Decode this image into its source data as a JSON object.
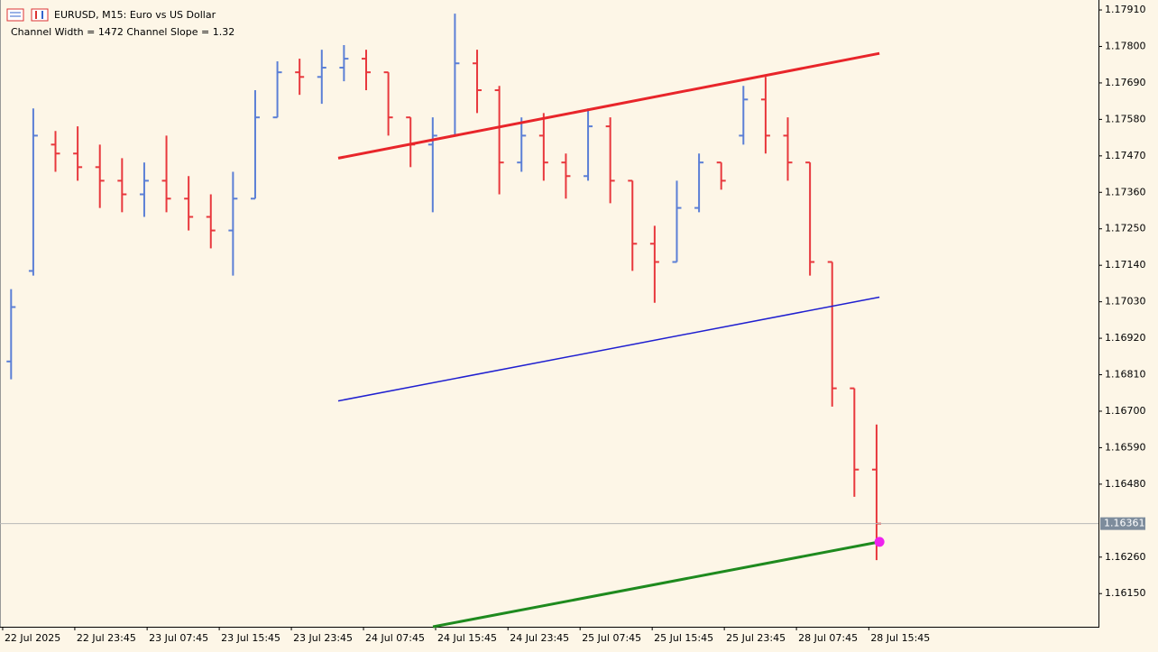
{
  "chart_data": {
    "type": "ohlc",
    "title": "EURUSD, M15:  Euro vs US Dollar",
    "subtitle": "Channel Width = 1472 Channel Slope = 1.32",
    "up_color": "#5b7fd6",
    "down_color": "#e8383d",
    "open": [
      1.1685,
      1.17123,
      1.17504,
      1.17477,
      1.17436,
      1.17395,
      1.17354,
      1.17395,
      1.17341,
      1.17286,
      1.17245,
      1.17341,
      1.17586,
      1.17722,
      1.17708,
      1.17736,
      1.17763,
      1.17722,
      1.17586,
      1.17504,
      1.17531,
      1.17749,
      1.17668,
      1.1745,
      1.17531,
      1.1745,
      1.17409,
      1.17559,
      1.17395,
      1.17205,
      1.1715,
      1.17313,
      1.1745,
      1.17531,
      1.1764,
      1.17531,
      1.1745,
      1.1715,
      1.16769,
      1.16524
    ],
    "high": [
      1.17068,
      1.17613,
      1.17545,
      1.17559,
      1.17504,
      1.17463,
      1.1745,
      1.17531,
      1.17409,
      1.17354,
      1.17422,
      1.17668,
      1.17755,
      1.17763,
      1.1779,
      1.17804,
      1.1779,
      1.17722,
      1.17586,
      1.17586,
      1.17899,
      1.1779,
      1.17681,
      1.17586,
      1.17599,
      1.17477,
      1.17613,
      1.17586,
      1.17395,
      1.17259,
      1.17395,
      1.17477,
      1.1745,
      1.17681,
      1.17708,
      1.17586,
      1.1745,
      1.1715,
      1.16769,
      1.1666
    ],
    "low": [
      1.16796,
      1.17109,
      1.17422,
      1.17395,
      1.17313,
      1.173,
      1.17286,
      1.173,
      1.17245,
      1.17191,
      1.17109,
      1.17341,
      1.17586,
      1.17654,
      1.17627,
      1.17695,
      1.17668,
      1.17531,
      1.17436,
      1.173,
      1.17531,
      1.17599,
      1.17354,
      1.17422,
      1.17395,
      1.17341,
      1.17395,
      1.17327,
      1.17123,
      1.17027,
      1.1715,
      1.173,
      1.17368,
      1.17504,
      1.17477,
      1.17395,
      1.17109,
      1.16714,
      1.16442,
      1.16251
    ],
    "close": [
      1.17014,
      1.17531,
      1.17477,
      1.17436,
      1.17395,
      1.17354,
      1.17395,
      1.17341,
      1.17286,
      1.17245,
      1.17341,
      1.17586,
      1.17722,
      1.17708,
      1.17736,
      1.17763,
      1.17722,
      1.17586,
      1.17504,
      1.17531,
      1.17749,
      1.17668,
      1.1745,
      1.17531,
      1.1745,
      1.17409,
      1.17559,
      1.17395,
      1.17205,
      1.1715,
      1.17313,
      1.1745,
      1.17395,
      1.1764,
      1.17531,
      1.1745,
      1.1715,
      1.16769,
      1.16524,
      1.16361
    ],
    "current_price": 1.16361,
    "lines": [
      {
        "color": "#e8252a",
        "width": 3,
        "x": [
          14.74,
          39.13
        ],
        "y": [
          1.17463,
          1.17779
        ]
      },
      {
        "color": "#1f1fd0",
        "width": 1.5,
        "x": [
          14.74,
          39.13
        ],
        "y": [
          1.16731,
          1.17044
        ]
      },
      {
        "color": "#1e8a1e",
        "width": 3,
        "x": [
          19.01,
          39.13
        ],
        "y": [
          1.1605,
          1.16306
        ]
      }
    ],
    "marker": {
      "color": "#ee22ee",
      "x": 39.13,
      "y": 1.16306
    },
    "xlim": [
      -0.5,
      49
    ],
    "ylim": [
      1.1605,
      1.1794
    ],
    "xticks": [
      {
        "value": -0.38,
        "label": "22 Jul 2025"
      },
      {
        "value": 2.87,
        "label": "22 Jul 23:45"
      },
      {
        "value": 6.13,
        "label": "23 Jul 07:45"
      },
      {
        "value": 9.38,
        "label": "23 Jul 15:45"
      },
      {
        "value": 12.63,
        "label": "23 Jul 23:45"
      },
      {
        "value": 15.88,
        "label": "24 Jul 07:45"
      },
      {
        "value": 19.13,
        "label": "24 Jul 15:45"
      },
      {
        "value": 22.39,
        "label": "24 Jul 23:45"
      },
      {
        "value": 25.64,
        "label": "25 Jul 07:45"
      },
      {
        "value": 28.89,
        "label": "25 Jul 15:45"
      },
      {
        "value": 32.14,
        "label": "25 Jul 23:45"
      },
      {
        "value": 35.39,
        "label": "28 Jul 07:45"
      },
      {
        "value": 38.65,
        "label": "28 Jul 15:45"
      }
    ],
    "yticks": [
      {
        "value": 1.1791,
        "label": "1.17910"
      },
      {
        "value": 1.178,
        "label": "1.17800"
      },
      {
        "value": 1.1769,
        "label": "1.17690"
      },
      {
        "value": 1.1758,
        "label": "1.17580"
      },
      {
        "value": 1.1747,
        "label": "1.17470"
      },
      {
        "value": 1.1736,
        "label": "1.17360"
      },
      {
        "value": 1.1725,
        "label": "1.17250"
      },
      {
        "value": 1.1714,
        "label": "1.17140"
      },
      {
        "value": 1.1703,
        "label": "1.17030"
      },
      {
        "value": 1.1692,
        "label": "1.16920"
      },
      {
        "value": 1.1681,
        "label": "1.16810"
      },
      {
        "value": 1.167,
        "label": "1.16700"
      },
      {
        "value": 1.1659,
        "label": "1.16590"
      },
      {
        "value": 1.1648,
        "label": "1.16480"
      },
      {
        "value": 1.1626,
        "label": "1.16260"
      },
      {
        "value": 1.1615,
        "label": "1.16150"
      }
    ]
  }
}
